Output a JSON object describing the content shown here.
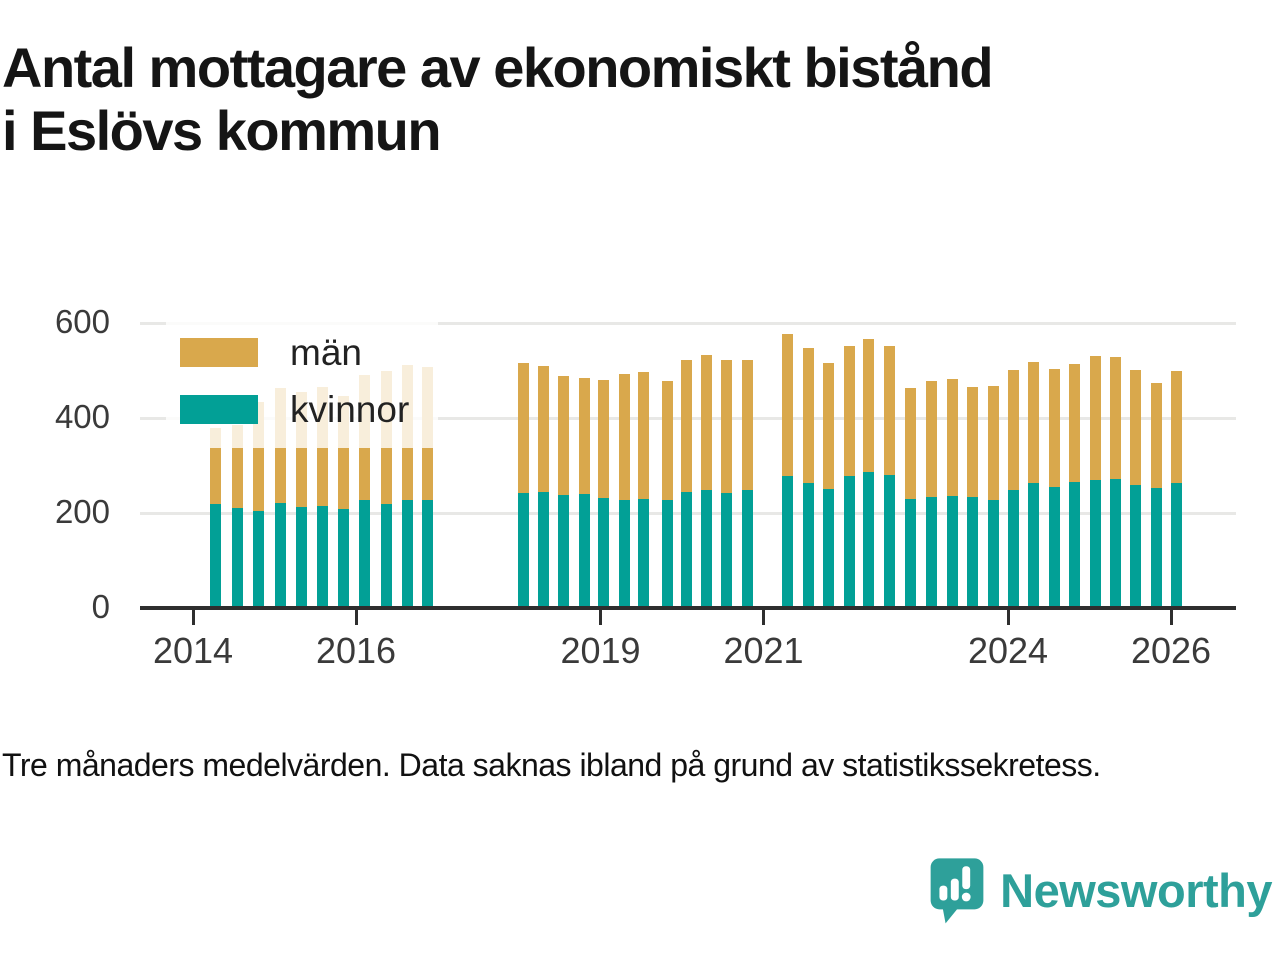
{
  "title_lines": [
    "Antal mottagare av ekonomiskt bistånd",
    "i Eslövs kommun"
  ],
  "footnote": "Tre månaders medelvärden. Data saknas ibland på grund av statistikssekretess.",
  "branding": {
    "name": "Newsworthy",
    "color": "#2EA09A",
    "icon": "speech-bubble-bar-chart"
  },
  "colors": {
    "man": "#D9A84C",
    "kvinnor": "#02A096",
    "axis": "#2e2e2e",
    "grid": "#e8e8e6",
    "tick_text": "#3a3a3a"
  },
  "legend": [
    {
      "key": "man",
      "label": "män",
      "color": "#D9A84C"
    },
    {
      "key": "kvinnor",
      "label": "kvinnor",
      "color": "#02A096"
    }
  ],
  "chart_data": {
    "type": "bar",
    "stacked": true,
    "title": "Antal mottagare av ekonomiskt bistånd i Eslövs kommun",
    "xlabel": "",
    "ylabel": "",
    "ylim": [
      0,
      620
    ],
    "yticks": [
      0,
      200,
      400,
      600
    ],
    "xticks": [
      2014,
      2016,
      2019,
      2021,
      2024,
      2026
    ],
    "grid": true,
    "legend_position": "top-left",
    "note": "gaps where data is missing (statistical secrecy)",
    "series_order": [
      "kvinnor",
      "man"
    ],
    "points": [
      {
        "label": "2014 Q2",
        "t": 2014.28,
        "kvinnor": 220,
        "man": 160
      },
      {
        "label": "2014 Q3",
        "t": 2014.54,
        "kvinnor": 210,
        "man": 176
      },
      {
        "label": "2014 Q4",
        "t": 2014.8,
        "kvinnor": 204,
        "man": 229
      },
      {
        "label": "2015 Q1",
        "t": 2015.07,
        "kvinnor": 221,
        "man": 243
      },
      {
        "label": "2015 Q2",
        "t": 2015.33,
        "kvinnor": 212,
        "man": 243
      },
      {
        "label": "2015 Q3",
        "t": 2015.59,
        "kvinnor": 214,
        "man": 252
      },
      {
        "label": "2015 Q4",
        "t": 2015.85,
        "kvinnor": 208,
        "man": 238
      },
      {
        "label": "2016 Q1",
        "t": 2016.11,
        "kvinnor": 228,
        "man": 262
      },
      {
        "label": "2016 Q2",
        "t": 2016.37,
        "kvinnor": 219,
        "man": 281
      },
      {
        "label": "2016 Q3",
        "t": 2016.63,
        "kvinnor": 227,
        "man": 285
      },
      {
        "label": "2016 Q4",
        "t": 2016.88,
        "kvinnor": 227,
        "man": 281
      },
      {
        "label": "2018 Q1",
        "t": 2018.06,
        "kvinnor": 243,
        "man": 273
      },
      {
        "label": "2018 Q2",
        "t": 2018.3,
        "kvinnor": 244,
        "man": 266
      },
      {
        "label": "2018 Q3",
        "t": 2018.55,
        "kvinnor": 237,
        "man": 252
      },
      {
        "label": "2018 Q4",
        "t": 2018.8,
        "kvinnor": 239,
        "man": 246
      },
      {
        "label": "2019 Q1",
        "t": 2019.04,
        "kvinnor": 232,
        "man": 247
      },
      {
        "label": "2019 Q2",
        "t": 2019.29,
        "kvinnor": 227,
        "man": 266
      },
      {
        "label": "2019 Q3",
        "t": 2019.53,
        "kvinnor": 230,
        "man": 266
      },
      {
        "label": "2019 Q4",
        "t": 2019.82,
        "kvinnor": 228,
        "man": 249
      },
      {
        "label": "2020 Q1",
        "t": 2020.06,
        "kvinnor": 245,
        "man": 278
      },
      {
        "label": "2020 Q2",
        "t": 2020.3,
        "kvinnor": 248,
        "man": 285
      },
      {
        "label": "2020 Q3",
        "t": 2020.55,
        "kvinnor": 242,
        "man": 281
      },
      {
        "label": "2020 Q4",
        "t": 2020.8,
        "kvinnor": 248,
        "man": 275
      },
      {
        "label": "2021 Q2",
        "t": 2021.3,
        "kvinnor": 277,
        "man": 300
      },
      {
        "label": "2021 Q3",
        "t": 2021.55,
        "kvinnor": 264,
        "man": 283
      },
      {
        "label": "2021 Q4",
        "t": 2021.8,
        "kvinnor": 251,
        "man": 264
      },
      {
        "label": "2022 Q1",
        "t": 2022.05,
        "kvinnor": 277,
        "man": 275
      },
      {
        "label": "2022 Q2",
        "t": 2022.29,
        "kvinnor": 287,
        "man": 280
      },
      {
        "label": "2022 Q3",
        "t": 2022.55,
        "kvinnor": 279,
        "man": 273
      },
      {
        "label": "2022 Q4",
        "t": 2022.8,
        "kvinnor": 229,
        "man": 234
      },
      {
        "label": "2023 Q1",
        "t": 2023.06,
        "kvinnor": 234,
        "man": 244
      },
      {
        "label": "2023 Q2",
        "t": 2023.32,
        "kvinnor": 236,
        "man": 246
      },
      {
        "label": "2023 Q3",
        "t": 2023.57,
        "kvinnor": 234,
        "man": 231
      },
      {
        "label": "2023 Q4",
        "t": 2023.82,
        "kvinnor": 227,
        "man": 240
      },
      {
        "label": "2024 Q1",
        "t": 2024.07,
        "kvinnor": 248,
        "man": 253
      },
      {
        "label": "2024 Q2",
        "t": 2024.31,
        "kvinnor": 263,
        "man": 255
      },
      {
        "label": "2024 Q3",
        "t": 2024.57,
        "kvinnor": 255,
        "man": 248
      },
      {
        "label": "2024 Q4",
        "t": 2024.82,
        "kvinnor": 265,
        "man": 249
      },
      {
        "label": "2025 Q1",
        "t": 2025.07,
        "kvinnor": 269,
        "man": 261
      },
      {
        "label": "2025 Q2",
        "t": 2025.32,
        "kvinnor": 271,
        "man": 257
      },
      {
        "label": "2025 Q3",
        "t": 2025.57,
        "kvinnor": 259,
        "man": 242
      },
      {
        "label": "2025 Q4",
        "t": 2025.82,
        "kvinnor": 253,
        "man": 221
      },
      {
        "label": "2026 Q1",
        "t": 2026.07,
        "kvinnor": 264,
        "man": 234
      }
    ]
  }
}
